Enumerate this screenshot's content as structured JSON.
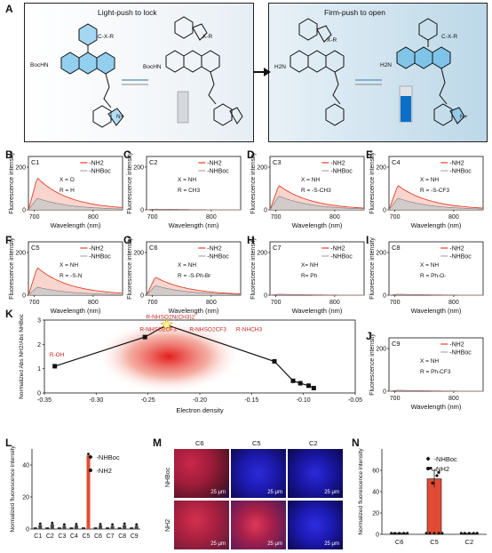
{
  "panelA": {
    "label": "A",
    "left_title": "Light-push to lock",
    "right_title": "Firm-push to open",
    "groups": {
      "bochn1": "BocHN",
      "bochn2": "BocHN",
      "h2n1": "H2N",
      "h2n2": "H2N",
      "c_x_r": "C-X-R",
      "x_r": "X-R",
      "n_plus": "N+"
    }
  },
  "spectra": [
    {
      "label": "B",
      "code": "C1",
      "notes": [
        "X = O",
        "R = H"
      ],
      "legend": [
        "-NH2",
        "-NHBoc"
      ],
      "ymax": "200",
      "y0": "0",
      "x1": "700",
      "x2": "800",
      "xlabel": "Wavelength (nm)",
      "ylabel": "Fluorescence intensity"
    },
    {
      "label": "C",
      "code": "C2",
      "notes": [
        "X = NH",
        "R = CH3"
      ],
      "legend": [
        "-NH2",
        "-NHBoc"
      ],
      "ymax": "200",
      "y0": "0",
      "x1": "700",
      "x2": "800",
      "xlabel": "Wavelength (nm)",
      "ylabel": "Fluorescence intensity"
    },
    {
      "label": "D",
      "code": "C3",
      "notes": [
        "X = NH",
        "R = -S-CH3"
      ],
      "legend": [
        "-NH2",
        "-NHBoc"
      ],
      "ymax": "200",
      "y0": "0",
      "x1": "700",
      "x2": "800",
      "xlabel": "Wavelength (nm)",
      "ylabel": "Fluorescence intensity"
    },
    {
      "label": "E",
      "code": "C4",
      "notes": [
        "X = NH",
        "R = -S-CF3"
      ],
      "legend": [
        "-NH2",
        "-NHBoc"
      ],
      "ymax": "200",
      "y0": "0",
      "x1": "700",
      "x2": "800",
      "xlabel": "Wavelength (nm)",
      "ylabel": "Fluorescence intensity"
    },
    {
      "label": "F",
      "code": "C5",
      "notes": [
        "X = NH",
        "R = -S-N"
      ],
      "legend": [
        "-NH2",
        "-NHBoc"
      ],
      "ymax": "200",
      "y0": "0",
      "x1": "700",
      "x2": "800",
      "xlabel": "Wavelength (nm)",
      "ylabel": "Fluorescence intensity"
    },
    {
      "label": "G",
      "code": "C6",
      "notes": [
        "X = NH",
        "R = -S-Ph-Br"
      ],
      "legend": [
        "-NH2",
        "-NHBoc"
      ],
      "ymax": "200",
      "y0": "0",
      "x1": "700",
      "x2": "800",
      "xlabel": "Wavelength (nm)",
      "ylabel": "Fluorescence intensity"
    },
    {
      "label": "H",
      "code": "C7",
      "notes": [
        "X= NH",
        "R= Ph"
      ],
      "legend": [
        "-NH2",
        "-NHBoc"
      ],
      "ymax": "200",
      "y0": "0",
      "x1": "700",
      "x2": "800",
      "xlabel": "Wavelength (nm)",
      "ylabel": "Fluorescence intensity"
    },
    {
      "label": "I",
      "code": "C8",
      "notes": [
        "X = NH",
        "R = Ph-O-"
      ],
      "legend": [
        "-NH2",
        "-NHBoc"
      ],
      "ymax": "200",
      "y0": "0",
      "x1": "700",
      "x2": "800",
      "xlabel": "Wavelength (nm)",
      "ylabel": "Fluorescence intensity"
    },
    {
      "label": "J",
      "code": "C9",
      "notes": [
        "X = NH",
        "R = Ph-CF3"
      ],
      "legend": [
        "-NH2",
        "-NHBoc"
      ],
      "ymax": "200",
      "y0": "0",
      "x1": "700",
      "x2": "800",
      "xlabel": "Wavelength (nm)",
      "ylabel": "Fluorescence intensity"
    }
  ],
  "panelK": {
    "label": "K",
    "xlabel": "Electron density",
    "ylabel": "Normalized Abs NH2/Abs NHBoc",
    "xticks": [
      "-0.35",
      "-0.30",
      "-0.25",
      "-0.20",
      "-0.15",
      "-0.10",
      "-0.05"
    ],
    "yticks": [
      "0",
      "1",
      "2",
      "3"
    ],
    "annotations": [
      "R-OH",
      "R-NHSO2CF3",
      "R-NHSO2N(CH3)2",
      "R-NHSO2CF3",
      "R-NHCH3"
    ],
    "chart_data": {
      "type": "scatter",
      "x": [
        -0.34,
        -0.253,
        -0.232,
        -0.128,
        -0.11,
        -0.103,
        -0.095,
        -0.09
      ],
      "y": [
        1.1,
        2.3,
        2.8,
        1.3,
        0.5,
        0.4,
        0.3,
        0.2
      ],
      "xlim": [
        -0.35,
        -0.05
      ],
      "ylim": [
        0,
        3
      ]
    }
  },
  "panelL": {
    "label": "L",
    "ylabel": "Normalized fluorescence intensity",
    "legend": [
      "-NHBoc",
      "-NH2"
    ],
    "yticks": [
      "0",
      "20",
      "40"
    ],
    "chart_data": {
      "type": "bar",
      "categories": [
        "C1",
        "C2",
        "C3",
        "C4",
        "C5",
        "C6",
        "C7",
        "C8",
        "C9"
      ],
      "series": [
        {
          "name": "-NHBoc",
          "values": [
            1,
            1,
            1,
            1,
            1,
            1,
            1,
            1,
            1
          ]
        },
        {
          "name": "-NH2",
          "values": [
            2.5,
            3,
            2,
            2.2,
            46,
            2.2,
            2,
            2.5,
            2
          ]
        }
      ],
      "ylim": [
        0,
        50
      ]
    }
  },
  "panelM": {
    "label": "M",
    "cols": [
      "C6",
      "C5",
      "C2"
    ],
    "rows": [
      "NHBoc",
      "NH2"
    ],
    "scale": "25 μm"
  },
  "panelN": {
    "label": "N",
    "ylabel": "Normalized fluorescence intensity",
    "legend": [
      "-NHBoc",
      "-NH2"
    ],
    "yticks": [
      "0",
      "20",
      "40",
      "60"
    ],
    "chart_data": {
      "type": "bar",
      "categories": [
        "C6",
        "C5",
        "C2"
      ],
      "series": [
        {
          "name": "-NHBoc",
          "values": [
            1,
            1,
            1
          ]
        },
        {
          "name": "-NH2",
          "values": [
            1.2,
            52,
            1
          ]
        }
      ],
      "ylim": [
        0,
        80
      ]
    }
  }
}
